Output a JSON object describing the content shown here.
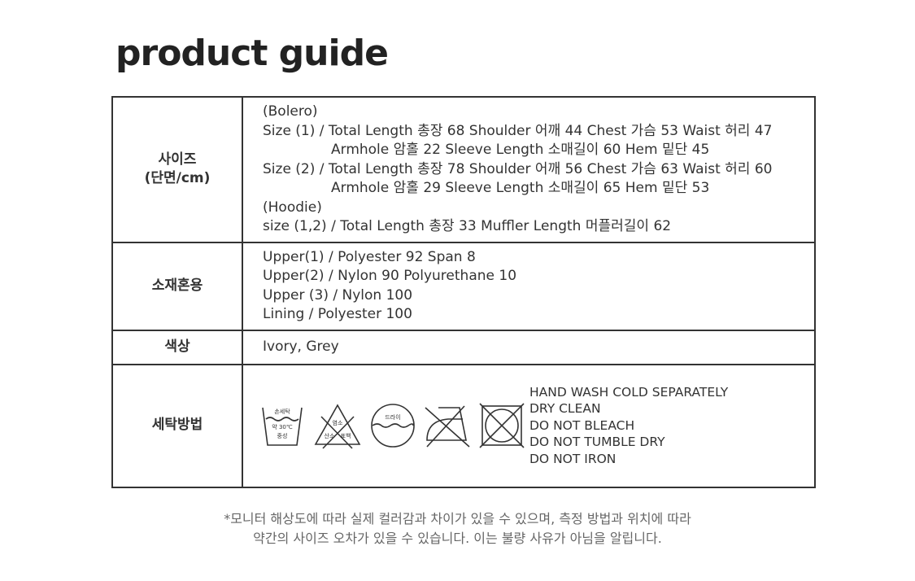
{
  "title": "product guide",
  "table": {
    "size": {
      "header": [
        "사이즈",
        "(단면/cm)"
      ],
      "lines": [
        "(Bolero)",
        "Size (1) / Total Length 총장 68 Shoulder 어깨 44 Chest 가슴 53 Waist 허리 47",
        "Armhole 암홀 22 Sleeve Length 소매길이 60 Hem 밑단 45",
        "Size (2) / Total Length 총장 78 Shoulder 어깨 56 Chest 가슴 63 Waist 허리 60",
        "Armhole 암홀 29 Sleeve Length 소매길이 65 Hem 밑단 53",
        "(Hoodie)",
        "size (1,2) / Total Length 총장 33 Muffler Length 머플러길이 62"
      ]
    },
    "material": {
      "header": "소재혼용",
      "lines": [
        "Upper(1) / Polyester 92 Span 8",
        "Upper(2) / Nylon 90 Polyurethane 10",
        "Upper (3) / Nylon 100",
        "Lining / Polyester 100"
      ]
    },
    "color": {
      "header": "색상",
      "value": "Ivory, Grey"
    },
    "care": {
      "header": "세탁방법",
      "icons": [
        {
          "name": "hand-wash-icon",
          "labels": [
            "손세탁",
            "약 30℃",
            "중성"
          ]
        },
        {
          "name": "no-bleach-icon",
          "labels": [
            "염소",
            "산소",
            "표백"
          ]
        },
        {
          "name": "dry-clean-icon",
          "labels": [
            "드라이"
          ]
        },
        {
          "name": "no-iron-icon"
        },
        {
          "name": "no-tumble-dry-icon"
        }
      ],
      "lines": [
        "HAND WASH COLD SEPARATELY",
        "DRY CLEAN",
        "DO NOT BLEACH",
        "DO NOT TUMBLE DRY",
        "DO NOT IRON"
      ]
    }
  },
  "footer": [
    "*모니터 해상도에 따라 실제 컬러감과 차이가 있을 수 있으며, 측정 방법과 위치에 따라",
    "약간의 사이즈 오차가 있을 수 있습니다. 이는 불량 사유가 아님을 알립니다."
  ]
}
